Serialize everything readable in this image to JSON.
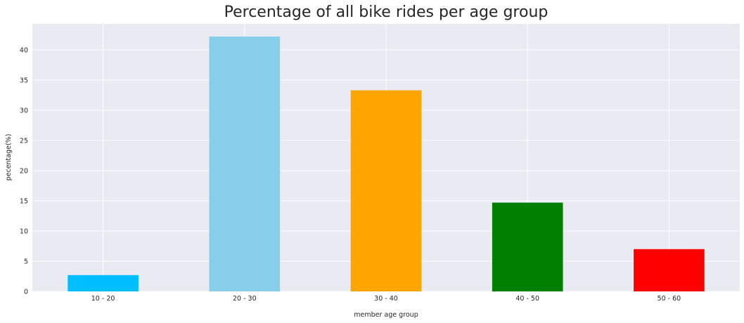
{
  "chart_data": {
    "type": "bar",
    "title": "Percentage of all bike rides per age group",
    "xlabel": "member age group",
    "ylabel": "pecentage(%)",
    "categories": [
      "10 - 20",
      "20 - 30",
      "30 - 40",
      "40 - 50",
      "50 - 60"
    ],
    "values": [
      2.7,
      42.2,
      33.3,
      14.7,
      7.0
    ],
    "colors": [
      "#00bfff",
      "#87ceeb",
      "#ffa500",
      "#008000",
      "#ff0000"
    ],
    "ylim": [
      0,
      44.3
    ],
    "yticks": [
      0,
      5,
      10,
      15,
      20,
      25,
      30,
      35,
      40
    ],
    "grid": true,
    "legend": "none",
    "background_color": "#eaeaf2",
    "grid_color": "#ffffff"
  }
}
